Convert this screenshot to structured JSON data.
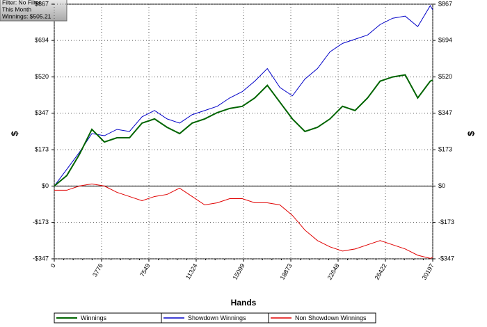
{
  "chart_data": {
    "type": "line",
    "annotations": [
      "Filter: No Filter",
      "This Month",
      "Winnings: $505.21"
    ],
    "x_label": "Hands",
    "y_label": "$",
    "x": [
      0,
      1000,
      2000,
      3000,
      4000,
      5000,
      6000,
      7000,
      8000,
      9000,
      10000,
      11000,
      12000,
      13000,
      14000,
      15000,
      16000,
      17000,
      18000,
      19000,
      20000,
      21000,
      22000,
      23000,
      24000,
      25000,
      26000,
      27000,
      28000,
      29000,
      30000,
      30197
    ],
    "series": [
      {
        "name": "Winnings",
        "color": "#006400",
        "values": [
          0,
          50,
          150,
          270,
          210,
          230,
          230,
          300,
          320,
          280,
          250,
          300,
          320,
          350,
          370,
          380,
          420,
          480,
          400,
          320,
          260,
          280,
          320,
          380,
          360,
          420,
          500,
          520,
          530,
          420,
          500,
          505.21
        ]
      },
      {
        "name": "Showdown Winnings",
        "color": "#0000c8",
        "values": [
          0,
          80,
          160,
          250,
          240,
          270,
          260,
          330,
          360,
          320,
          300,
          340,
          360,
          380,
          420,
          450,
          500,
          560,
          470,
          430,
          510,
          560,
          640,
          680,
          700,
          720,
          770,
          800,
          810,
          760,
          860,
          840
        ]
      },
      {
        "name": "Non Showdown Winnings",
        "color": "#e00000",
        "values": [
          -20,
          -20,
          0,
          10,
          0,
          -30,
          -50,
          -70,
          -50,
          -40,
          -10,
          -50,
          -90,
          -80,
          -60,
          -60,
          -80,
          -80,
          -90,
          -140,
          -210,
          -260,
          -290,
          -310,
          -300,
          -280,
          -260,
          -280,
          -300,
          -330,
          -345,
          -340
        ]
      }
    ],
    "xlim": [
      0,
      30197
    ],
    "xticks": [
      0,
      3776,
      7549,
      11324,
      15099,
      18873,
      22648,
      26422,
      30197
    ],
    "ylim": [
      -347,
      867
    ],
    "yticks": [
      {
        "value": 867,
        "label": "$867"
      },
      {
        "value": 694,
        "label": "$694"
      },
      {
        "value": 520,
        "label": "$520"
      },
      {
        "value": 347,
        "label": "$347"
      },
      {
        "value": 173,
        "label": "$173"
      },
      {
        "value": 0,
        "label": "$0"
      },
      {
        "value": -173,
        "label": "-$173"
      },
      {
        "value": -347,
        "label": "-$347"
      }
    ],
    "grid": true
  }
}
